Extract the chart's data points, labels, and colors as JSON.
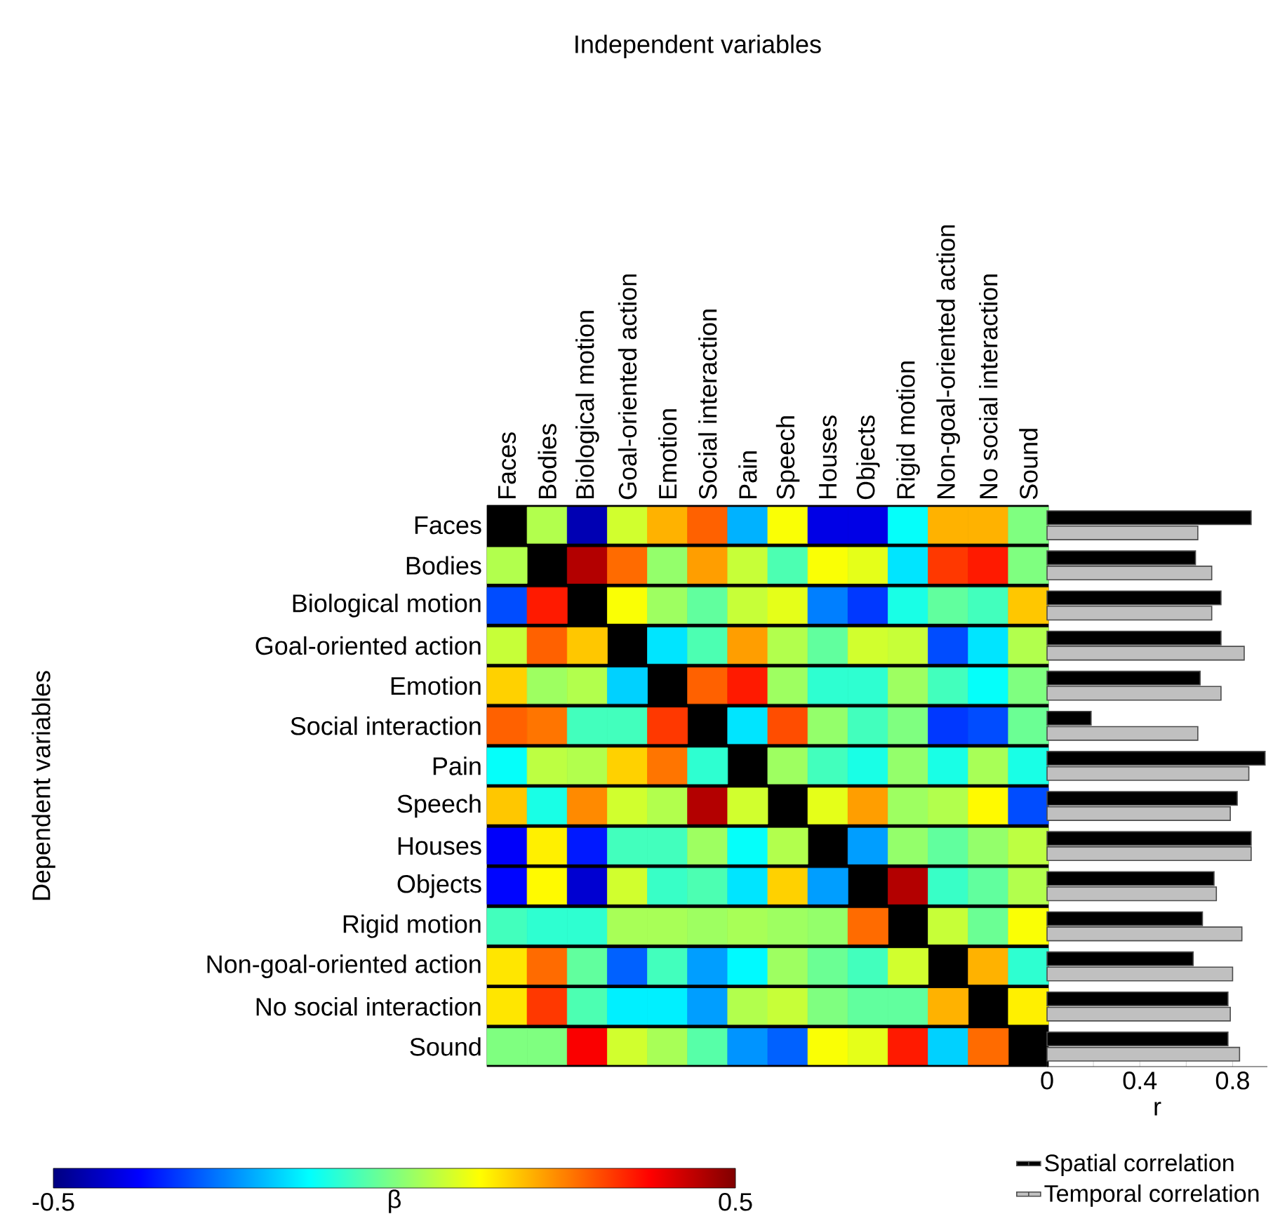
{
  "chart_data": [
    {
      "type": "heatmap",
      "xlabel": "Independent variables",
      "ylabel": "Dependent variables",
      "clabel": "β",
      "categories": [
        "Faces",
        "Bodies",
        "Biological motion",
        "Goal-oriented action",
        "Emotion",
        "Social interaction",
        "Pain",
        "Speech",
        "Houses",
        "Objects",
        "Rigid motion",
        "Non-goal-oriented action",
        "No social interaction",
        "Sound"
      ],
      "y_categories": [
        "Faces",
        "Bodies",
        "Biological motion",
        "Goal-oriented action",
        "Emotion",
        "Social interaction",
        "Pain",
        "Speech",
        "Houses",
        "Objects",
        "Rigid motion",
        "Non-goal-oriented action",
        "No social interaction",
        "Sound"
      ],
      "cells": [
        [
          null,
          0.05,
          -0.45,
          0.08,
          0.2,
          0.28,
          -0.2,
          0.12,
          -0.4,
          -0.4,
          -0.12,
          0.2,
          0.2,
          0.0
        ],
        [
          0.05,
          null,
          0.45,
          0.27,
          0.02,
          0.22,
          0.07,
          -0.05,
          0.12,
          0.1,
          -0.15,
          0.32,
          0.35,
          0.0
        ],
        [
          -0.3,
          0.35,
          null,
          0.12,
          0.03,
          -0.03,
          0.07,
          0.1,
          -0.25,
          -0.32,
          -0.1,
          -0.03,
          -0.06,
          0.18
        ],
        [
          0.07,
          0.28,
          0.18,
          null,
          -0.15,
          -0.05,
          0.22,
          0.05,
          -0.03,
          0.08,
          0.07,
          -0.3,
          -0.15,
          0.05
        ],
        [
          0.17,
          0.03,
          0.05,
          -0.17,
          null,
          0.28,
          0.35,
          0.03,
          -0.08,
          -0.08,
          0.03,
          -0.06,
          -0.12,
          0.0
        ],
        [
          0.28,
          0.26,
          -0.06,
          -0.06,
          0.32,
          null,
          -0.15,
          0.3,
          0.02,
          -0.06,
          0.0,
          -0.32,
          -0.3,
          -0.02
        ],
        [
          -0.12,
          0.06,
          0.05,
          0.17,
          0.26,
          -0.08,
          null,
          0.03,
          -0.06,
          -0.1,
          0.02,
          -0.1,
          0.04,
          -0.1
        ],
        [
          0.18,
          -0.1,
          0.24,
          0.08,
          0.05,
          0.45,
          0.08,
          null,
          0.1,
          0.22,
          0.03,
          0.05,
          0.13,
          -0.3
        ],
        [
          -0.38,
          0.14,
          -0.35,
          -0.06,
          -0.06,
          0.03,
          -0.12,
          0.05,
          null,
          -0.22,
          0.02,
          -0.03,
          0.02,
          0.06
        ],
        [
          -0.37,
          0.13,
          -0.42,
          0.08,
          -0.07,
          -0.05,
          -0.15,
          0.17,
          -0.22,
          null,
          0.45,
          -0.07,
          -0.03,
          0.05
        ],
        [
          -0.06,
          -0.08,
          -0.08,
          0.04,
          0.04,
          0.03,
          0.04,
          0.03,
          0.02,
          0.27,
          null,
          0.07,
          -0.02,
          0.12
        ],
        [
          0.15,
          0.27,
          -0.03,
          -0.28,
          -0.06,
          -0.22,
          -0.13,
          0.03,
          -0.02,
          -0.06,
          0.08,
          null,
          0.2,
          -0.08
        ],
        [
          0.15,
          0.32,
          -0.05,
          -0.14,
          -0.14,
          -0.22,
          0.05,
          0.07,
          0.0,
          -0.03,
          -0.03,
          0.2,
          null,
          0.14
        ],
        [
          0.0,
          0.0,
          0.38,
          0.08,
          0.04,
          -0.04,
          -0.23,
          -0.28,
          0.12,
          0.1,
          0.35,
          -0.17,
          0.27,
          null
        ]
      ],
      "clim": [
        -0.5,
        0.5
      ],
      "cticks": [
        -0.5,
        0.5
      ]
    },
    {
      "type": "bar",
      "orientation": "horizontal",
      "xlabel": "r",
      "tick_labels": "x",
      "legend": "bottom",
      "categories": [
        null,
        null,
        null,
        null,
        null,
        null,
        null,
        null,
        null,
        null,
        null,
        null,
        null,
        null
      ],
      "xlim": [
        0,
        0.95
      ],
      "xticks": [
        0,
        {
          "value": 0.2,
          "label": null
        },
        0.4,
        {
          "value": 0.6,
          "label": null
        },
        0.8
      ],
      "series": [
        {
          "name": "Spatial correlation",
          "color": "#000000",
          "values": [
            0.88,
            0.64,
            0.75,
            0.75,
            0.66,
            0.19,
            0.94,
            0.82,
            0.88,
            0.72,
            0.67,
            0.63,
            0.78,
            0.78
          ]
        },
        {
          "name": "Temporal correlation",
          "color": "#c0c0c0",
          "values": [
            0.65,
            0.71,
            0.71,
            0.85,
            0.75,
            0.65,
            0.87,
            0.79,
            0.88,
            0.73,
            0.84,
            0.8,
            0.79,
            0.83
          ]
        }
      ]
    }
  ]
}
